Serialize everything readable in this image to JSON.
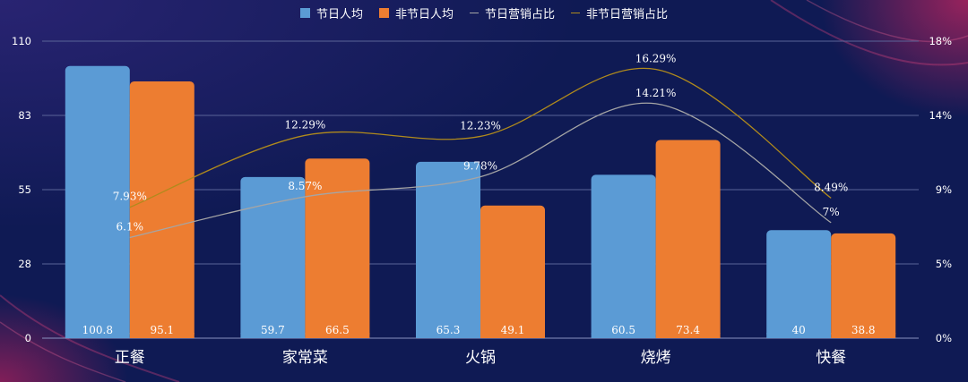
{
  "legend": [
    {
      "label": "节日人均",
      "kind": "bar",
      "color": "#5b9bd5"
    },
    {
      "label": "非节日人均",
      "kind": "bar",
      "color": "#ed7d31"
    },
    {
      "label": "节日营销占比",
      "kind": "line",
      "color": "#a5a5a5"
    },
    {
      "label": "非节日营销占比",
      "kind": "line",
      "color": "#b08a1c"
    }
  ],
  "chart_data": {
    "type": "bar",
    "categories": [
      "正餐",
      "家常菜",
      "火锅",
      "烧烤",
      "快餐"
    ],
    "series": [
      {
        "name": "节日人均",
        "type": "bar",
        "axis": "left",
        "color": "#5b9bd5",
        "values": [
          100.8,
          59.7,
          65.3,
          60.5,
          40
        ],
        "labels": [
          "100.8",
          "59.7",
          "65.3",
          "60.5",
          "40"
        ]
      },
      {
        "name": "非节日人均",
        "type": "bar",
        "axis": "left",
        "color": "#ed7d31",
        "values": [
          95.1,
          66.5,
          49.1,
          73.4,
          38.8
        ],
        "labels": [
          "95.1",
          "66.5",
          "49.1",
          "73.4",
          "38.8"
        ]
      },
      {
        "name": "节日营销占比",
        "type": "line",
        "axis": "right",
        "color": "#a5a5a5",
        "values": [
          6.1,
          8.57,
          9.78,
          14.21,
          7
        ],
        "labels": [
          "6.1%",
          "8.57%",
          "9.78%",
          "14.21%",
          "7%"
        ]
      },
      {
        "name": "非节日营销占比",
        "type": "line",
        "axis": "right",
        "color": "#b08a1c",
        "values": [
          7.93,
          12.29,
          12.23,
          16.29,
          8.49
        ],
        "labels": [
          "7.93%",
          "12.29%",
          "12.23%",
          "16.29%",
          "8.49%"
        ]
      }
    ],
    "y_left": {
      "range": [
        0,
        110
      ],
      "ticks": [
        "0",
        "28",
        "55",
        "83",
        "110"
      ]
    },
    "y_right": {
      "range": [
        0,
        18
      ],
      "ticks": [
        "0%",
        "5%",
        "9%",
        "14%",
        "18%"
      ]
    },
    "grid": true,
    "legend_position": "top-center"
  }
}
